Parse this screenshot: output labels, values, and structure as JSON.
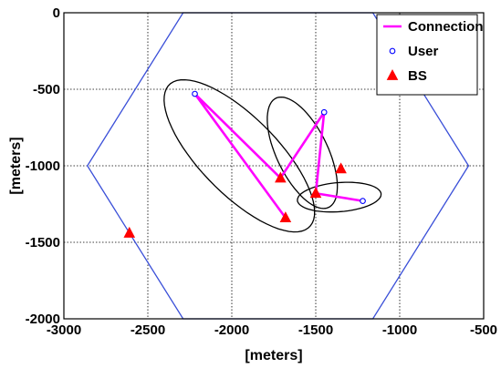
{
  "chart_data": {
    "type": "scatter",
    "title": "",
    "xlabel": "[meters]",
    "ylabel": "[meters]",
    "xlim": [
      -3000,
      -500
    ],
    "ylim": [
      -2000,
      0
    ],
    "grid": true,
    "legend_position": "top-right",
    "x_ticks": [
      "-3000",
      "-2500",
      "-2000",
      "-1500",
      "-1000",
      "-500"
    ],
    "y_ticks": [
      "0",
      "-500",
      "-1000",
      "-1500",
      "-2000"
    ],
    "series": [
      {
        "name": "Connection",
        "kind": "line",
        "color": "#ff00ff"
      },
      {
        "name": "User",
        "kind": "marker-circle",
        "color": "#0000ff"
      },
      {
        "name": "BS",
        "kind": "marker-triangle",
        "color": "#ff0000"
      }
    ],
    "cell_boundary": [
      [
        -2290,
        0
      ],
      [
        -1160,
        0
      ],
      [
        -590,
        -1000
      ],
      [
        -1160,
        -2000
      ],
      [
        -2290,
        -2000
      ],
      [
        -2860,
        -1000
      ]
    ],
    "users": [
      [
        -2220,
        -530
      ],
      [
        -1450,
        -650
      ],
      [
        -1220,
        -1230
      ]
    ],
    "base_stations": [
      [
        -2610,
        -1440
      ],
      [
        -1710,
        -1080
      ],
      [
        -1680,
        -1340
      ],
      [
        -1500,
        -1180
      ],
      [
        -1350,
        -1020
      ]
    ],
    "connections": [
      [
        [
          -2220,
          -530
        ],
        [
          -1710,
          -1080
        ]
      ],
      [
        [
          -2220,
          -530
        ],
        [
          -1680,
          -1340
        ]
      ],
      [
        [
          -1450,
          -650
        ],
        [
          -1710,
          -1080
        ]
      ],
      [
        [
          -1450,
          -650
        ],
        [
          -1500,
          -1180
        ]
      ],
      [
        [
          -1220,
          -1230
        ],
        [
          -1500,
          -1180
        ]
      ]
    ],
    "ellipses": [
      {
        "cx": -1955,
        "cy": -935,
        "rx": 625,
        "ry": 240,
        "angle_deg": -49
      },
      {
        "cx": -1580,
        "cy": -915,
        "rx": 390,
        "ry": 155,
        "angle_deg": -67
      },
      {
        "cx": -1360,
        "cy": -1205,
        "rx": 250,
        "ry": 95,
        "angle_deg": 5
      }
    ]
  }
}
